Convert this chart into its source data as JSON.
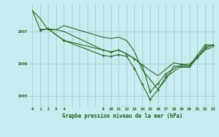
{
  "background_color": "#c8edf0",
  "grid_color": "#aacccc",
  "line_color": "#2d6e2d",
  "title": "Graphe pression niveau de la mer (hPa)",
  "xlim": [
    -0.5,
    23.5
  ],
  "ylim": [
    1004.65,
    1007.85
  ],
  "yticks": [
    1005,
    1006,
    1007
  ],
  "x_all": [
    0,
    1,
    2,
    3,
    4,
    5,
    6,
    7,
    8,
    9,
    10,
    11,
    12,
    13,
    14,
    15,
    16,
    17,
    18,
    19,
    20,
    21,
    22,
    23
  ],
  "x_labeled": [
    0,
    1,
    2,
    3,
    4,
    9,
    10,
    11,
    12,
    13,
    14,
    15,
    16,
    17,
    18,
    19,
    20,
    21,
    22,
    23
  ],
  "series": [
    {
      "x": [
        0,
        1,
        2,
        3,
        4,
        9,
        10,
        11,
        12,
        13,
        14,
        15,
        16,
        17,
        18,
        19,
        20,
        21,
        22,
        23
      ],
      "y": [
        1007.65,
        1007.4,
        1007.05,
        1007.05,
        1007.18,
        1006.82,
        1006.78,
        1006.82,
        1006.72,
        1006.38,
        1005.8,
        1005.5,
        1005.2,
        1005.5,
        1005.92,
        1005.88,
        1005.88,
        1006.18,
        1006.5,
        1006.58
      ],
      "has_markers": false,
      "lw": 0.9
    },
    {
      "x": [
        0,
        1,
        2,
        3,
        4,
        9,
        10,
        11,
        12,
        13,
        14,
        15,
        16,
        17,
        18,
        19,
        20,
        21,
        22,
        23
      ],
      "y": [
        1007.65,
        1007.05,
        1007.08,
        1007.05,
        1007.0,
        1006.42,
        1006.36,
        1006.42,
        1006.3,
        1006.15,
        1005.95,
        1005.78,
        1005.62,
        1005.82,
        1006.02,
        1005.98,
        1005.98,
        1006.18,
        1006.42,
        1006.52
      ],
      "has_markers": false,
      "lw": 0.9
    },
    {
      "x": [
        1,
        2,
        4,
        9,
        10,
        11,
        12,
        13,
        14,
        15,
        16,
        17,
        19,
        20,
        21,
        22,
        23
      ],
      "y": [
        1007.05,
        1007.08,
        1006.72,
        1006.25,
        1006.22,
        1006.28,
        1006.22,
        1005.85,
        1005.35,
        1004.88,
        1005.18,
        1005.58,
        1005.92,
        1005.92,
        1006.25,
        1006.58,
        1006.58
      ],
      "has_markers": true,
      "lw": 0.9
    },
    {
      "x": [
        1,
        2,
        4,
        9,
        10,
        11,
        12,
        13,
        14,
        15,
        16,
        17,
        19,
        20,
        21,
        22,
        23
      ],
      "y": [
        1007.05,
        1007.08,
        1006.72,
        1006.42,
        1006.36,
        1006.42,
        1006.3,
        1006.15,
        1005.95,
        1005.12,
        1005.38,
        1005.68,
        1005.98,
        1005.92,
        1006.18,
        1006.48,
        1006.58
      ],
      "has_markers": true,
      "lw": 0.9
    }
  ]
}
